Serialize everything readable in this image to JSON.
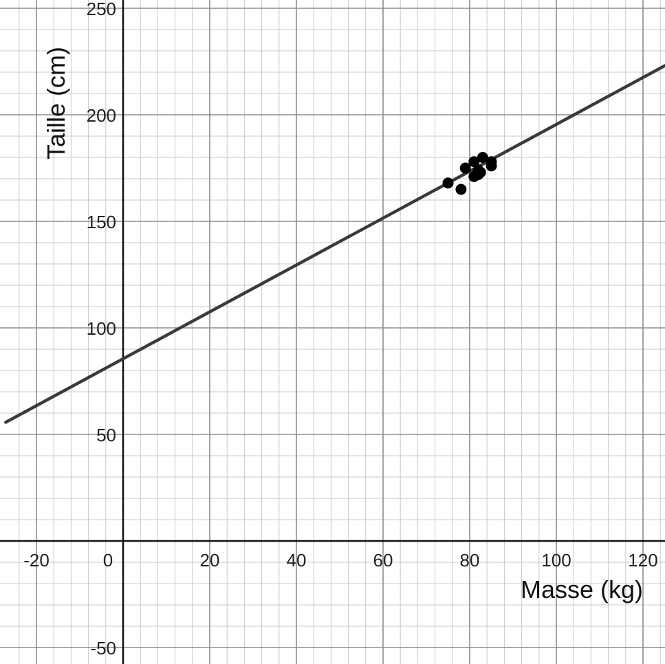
{
  "chart_data": {
    "type": "scatter",
    "xlabel": "Masse (kg)",
    "ylabel": "Taille (cm)",
    "xlim": [
      -27.1,
      125.5
    ],
    "ylim": [
      -57,
      253
    ],
    "x_ticks": [
      "-20",
      "0",
      "20",
      "40",
      "60",
      "80",
      "100",
      "120"
    ],
    "y_ticks": [
      "-50",
      "50",
      "100",
      "150",
      "200",
      "250"
    ],
    "grid": true,
    "minor_grid_step": {
      "x": 4,
      "y": 10
    },
    "major_grid_step": {
      "x": 20,
      "y": 50
    },
    "regression_line": {
      "slope": 1.1,
      "intercept": 85.5
    },
    "points": [
      {
        "x": 75,
        "y": 168
      },
      {
        "x": 78,
        "y": 165
      },
      {
        "x": 79,
        "y": 175
      },
      {
        "x": 81,
        "y": 178
      },
      {
        "x": 81,
        "y": 171
      },
      {
        "x": 82,
        "y": 172
      },
      {
        "x": 82,
        "y": 174
      },
      {
        "x": 82.5,
        "y": 173
      },
      {
        "x": 83,
        "y": 180
      },
      {
        "x": 85,
        "y": 178
      },
      {
        "x": 85,
        "y": 176
      }
    ],
    "colors": {
      "point": "#000000",
      "line": "#3a3a3a",
      "minor_grid": "#c8c8c8",
      "major_grid": "#8e8e8e",
      "axis": "#111111"
    }
  }
}
